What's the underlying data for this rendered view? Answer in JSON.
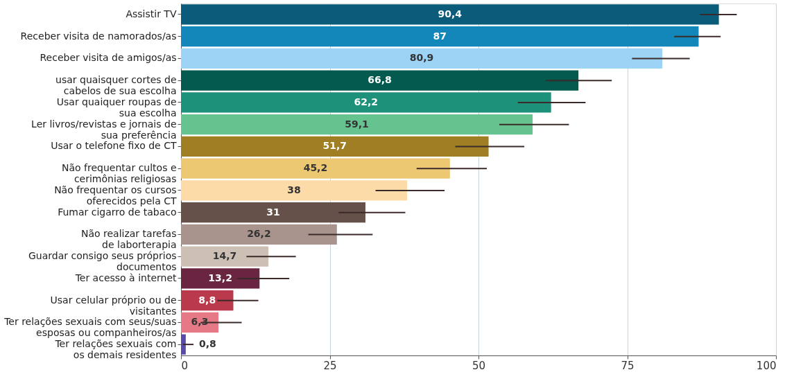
{
  "chart_data": {
    "type": "bar",
    "orientation": "horizontal",
    "categories": [
      "Assistir TV",
      "Receber visita de namorados/as",
      "Receber visita de amigos/as",
      "usar quaisquer cortes de\ncabelos de sua escolha",
      "Usar quaiquer roupas de\nsua escolha",
      "Ler livros/revistas e jornais de\nsua preferência",
      "Usar o telefone fixo de CT",
      "Não frequentar cultos e\ncerimônias religiosas",
      "Não frequentar os cursos\noferecidos pela CT",
      "Fumar cigarro de tabaco",
      "Não realizar tarefas\nde laborterapia",
      "Guardar consigo seus próprios\ndocumentos",
      "Ter acesso à internet",
      "Usar celular próprio ou de\nvisitantes",
      "Ter relações sexuais com seus/suas\nesposas ou companheiros/as",
      "Ter relações sexuais com\nos demais residentes"
    ],
    "values": [
      90.4,
      87,
      80.9,
      66.8,
      62.2,
      59.1,
      51.7,
      45.2,
      38,
      31,
      26.2,
      14.7,
      13.2,
      8.8,
      6.3,
      0.8
    ],
    "value_labels": [
      "90,4",
      "87",
      "80,9",
      "66,8",
      "62,2",
      "59,1",
      "51,7",
      "45,2",
      "38",
      "31",
      "26,2",
      "14,7",
      "13,2",
      "8,8",
      "6,3",
      "0,8"
    ],
    "colors": [
      "#0a5c7a",
      "#1387b9",
      "#9dd4f5",
      "#045a4e",
      "#1e917b",
      "#65c390",
      "#a07f24",
      "#ecc873",
      "#fddba9",
      "#66514a",
      "#a8948d",
      "#ccbfb4",
      "#6a2640",
      "#b83a4b",
      "#e57a86",
      "#5a4bab"
    ],
    "errors": [
      [
        87.2,
        93.4
      ],
      [
        82.9,
        90.7
      ],
      [
        75.8,
        85.5
      ],
      [
        61.3,
        72.4
      ],
      [
        56.6,
        68.0
      ],
      [
        53.5,
        65.2
      ],
      [
        46.1,
        57.7
      ],
      [
        39.6,
        51.4
      ],
      [
        32.7,
        44.3
      ],
      [
        26.5,
        37.7
      ],
      [
        21.4,
        32.2
      ],
      [
        11.0,
        19.3
      ],
      [
        9.5,
        18.2
      ],
      [
        6.1,
        13.0
      ],
      [
        3.3,
        10.2
      ],
      [
        0.3,
        2.1
      ]
    ],
    "xlim": [
      0,
      100
    ],
    "xticks": [
      0,
      25,
      50,
      75,
      100
    ],
    "grid": "x"
  }
}
